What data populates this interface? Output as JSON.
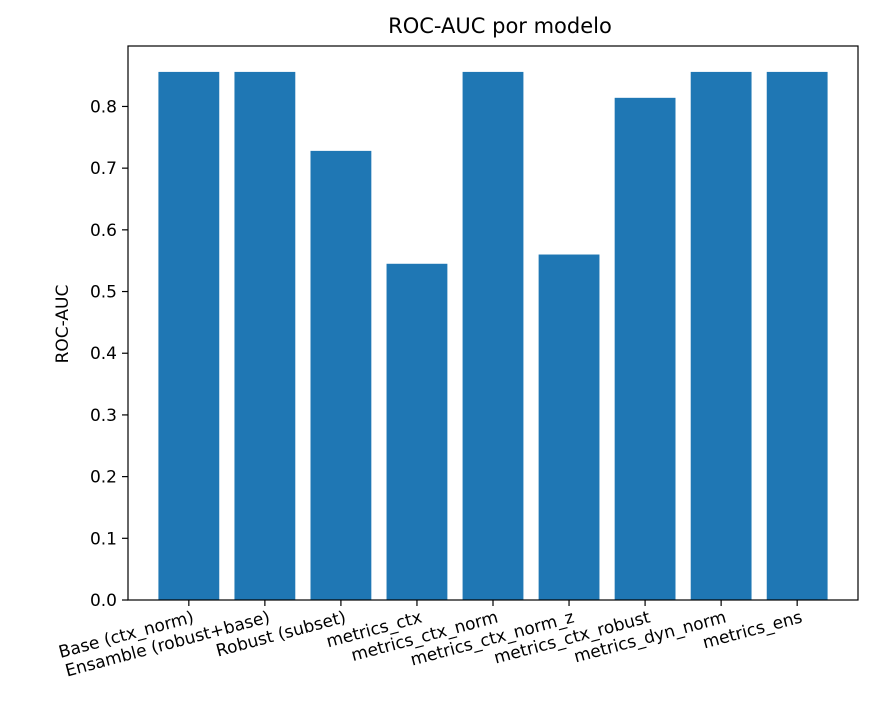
{
  "chart_data": {
    "type": "bar",
    "title": "ROC-AUC por modelo",
    "xlabel": "",
    "ylabel": "ROC-AUC",
    "categories": [
      "Base (ctx_norm)",
      "Ensamble (robust+base)",
      "Robust (subset)",
      "metrics_ctx",
      "metrics_ctx_norm",
      "metrics_ctx_norm_z",
      "metrics_ctx_robust",
      "metrics_dyn_norm",
      "metrics_ens"
    ],
    "values": [
      0.856,
      0.856,
      0.728,
      0.545,
      0.856,
      0.56,
      0.814,
      0.856,
      0.856
    ],
    "ylim": [
      0,
      0.898
    ],
    "yticks": [
      "0.0",
      "0.1",
      "0.2",
      "0.3",
      "0.4",
      "0.5",
      "0.6",
      "0.7",
      "0.8"
    ],
    "bar_color": "#1f77b4",
    "grid": false,
    "legend": "none"
  }
}
